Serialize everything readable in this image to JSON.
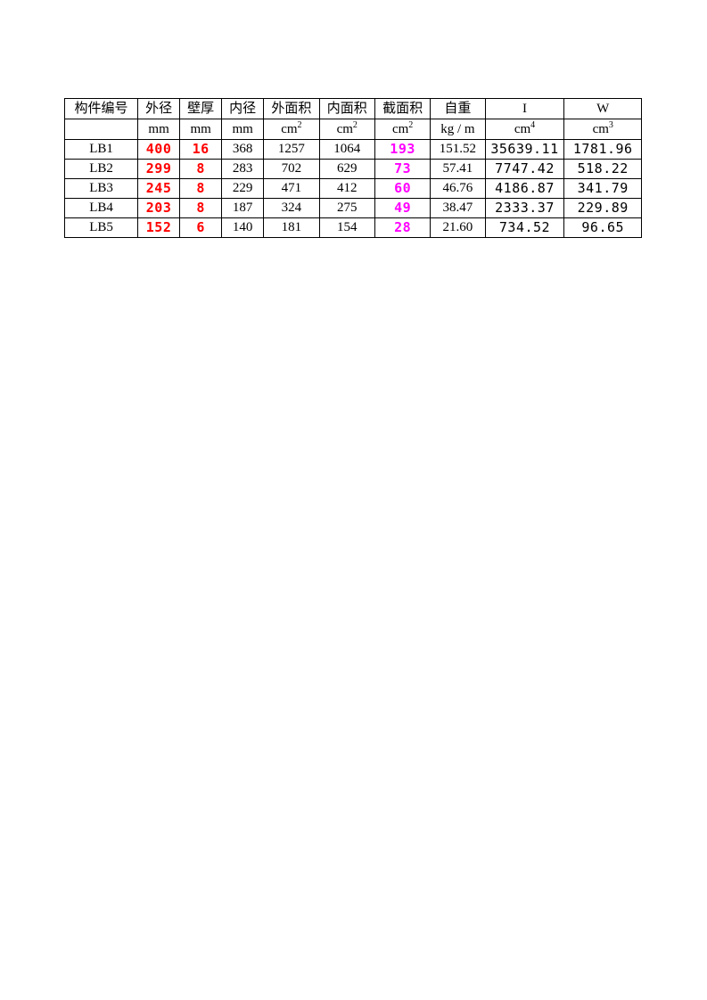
{
  "table": {
    "colors": {
      "red": "#ff0000",
      "magenta": "#ff00ff",
      "black": "#000000",
      "border": "#000000",
      "background": "#ffffff"
    },
    "header1": [
      "构件编号",
      "外径",
      "壁厚",
      "内径",
      "外面积",
      "内面积",
      "截面积",
      "自重",
      "I",
      "W"
    ],
    "header2_base": [
      "",
      "mm",
      "mm",
      "mm",
      "cm",
      "cm",
      "cm",
      "kg / m",
      "cm",
      "cm"
    ],
    "header2_exp": [
      "",
      "",
      "",
      "",
      "2",
      "2",
      "2",
      "",
      "4",
      "3"
    ],
    "rows": [
      {
        "id": "LB1",
        "od": "400",
        "wt": "16",
        "idm": "368",
        "oa": "1257",
        "ia": "1064",
        "ca": "193",
        "wgt": "151.52",
        "i": "35639.11",
        "w": "1781.96"
      },
      {
        "id": "LB2",
        "od": "299",
        "wt": "8",
        "idm": "283",
        "oa": "702",
        "ia": "629",
        "ca": "73",
        "wgt": "57.41",
        "i": "7747.42",
        "w": "518.22"
      },
      {
        "id": "LB3",
        "od": "245",
        "wt": "8",
        "idm": "229",
        "oa": "471",
        "ia": "412",
        "ca": "60",
        "wgt": "46.76",
        "i": "4186.87",
        "w": "341.79"
      },
      {
        "id": "LB4",
        "od": "203",
        "wt": "8",
        "idm": "187",
        "oa": "324",
        "ia": "275",
        "ca": "49",
        "wgt": "38.47",
        "i": "2333.37",
        "w": "229.89"
      },
      {
        "id": "LB5",
        "od": "152",
        "wt": "6",
        "idm": "140",
        "oa": "181",
        "ia": "154",
        "ca": "28",
        "wgt": "21.60",
        "i": "734.52",
        "w": "96.65"
      }
    ]
  }
}
